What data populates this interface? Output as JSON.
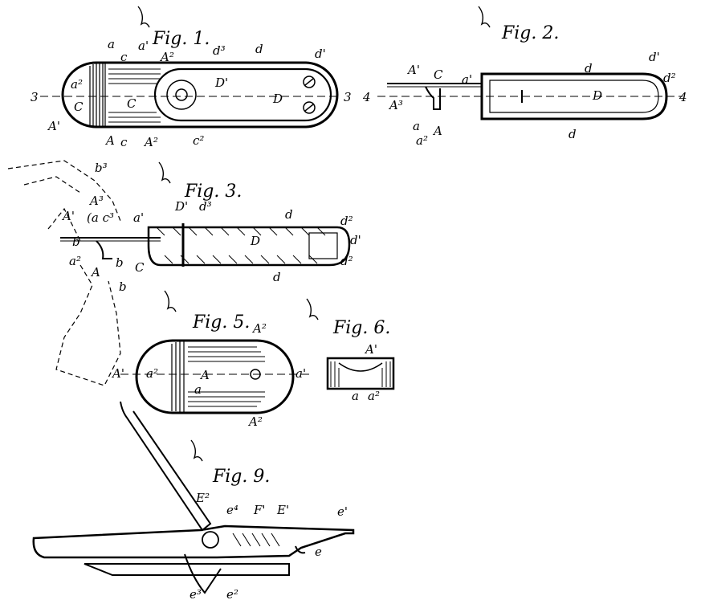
{
  "figures": {
    "fig1": {
      "title": "Fig. 1.",
      "labels": {
        "a_top": "a",
        "a1_top": "a'",
        "A2_top": "A²",
        "d3": "d³",
        "d": "d",
        "d1": "d'",
        "c_top": "c",
        "a2_left": "a²",
        "C_left": "C",
        "D1": "D'",
        "D": "D",
        "section_left": "3",
        "section_right": "3",
        "C_center": "C",
        "A1": "A'",
        "A_bottom": "A",
        "c_bottom": "c",
        "A2_bottom": "A²",
        "C2_bottom": "c²"
      }
    },
    "fig2": {
      "title": "Fig. 2.",
      "labels": {
        "A1": "A'",
        "C": "C",
        "a1": "a'",
        "d_top": "d",
        "d1": "d'",
        "d2": "d²",
        "section_left": "4",
        "section_right": "4",
        "A3": "A³",
        "D": "D",
        "a": "a",
        "a2": "a²",
        "A": "A",
        "d_bottom": "d"
      }
    },
    "fig3": {
      "title": "Fig. 3.",
      "labels": {
        "b3": "b³",
        "A3": "A³",
        "A1": "A'",
        "a_c3": "(a c³",
        "a1": "a'",
        "D1": "D'",
        "d3": "d³",
        "d_top": "d",
        "d2_top": "d²",
        "d1": "d'",
        "b_left": "b",
        "a2": "a²",
        "C": "C",
        "D": "D",
        "d2_bottom": "d²",
        "A": "A",
        "b_mid": "b",
        "d_bottom": "d",
        "b_bottom": "b"
      }
    },
    "fig5": {
      "title": "Fig. 5.",
      "labels": {
        "A2_top": "A²",
        "A1": "A'",
        "a2": "a²",
        "A": "A",
        "a": "a",
        "a1": "a'",
        "A2_bottom": "A²"
      }
    },
    "fig6": {
      "title": "Fig. 6.",
      "labels": {
        "A1": "A'",
        "a": "a",
        "a2": "a²"
      }
    },
    "fig9": {
      "title": "Fig. 9.",
      "labels": {
        "E2_top": "E²",
        "e4": "e⁴",
        "F1": "F'",
        "E1": "E'",
        "e1": "e'",
        "e": "e",
        "e3": "e³",
        "e2": "e²"
      }
    }
  }
}
